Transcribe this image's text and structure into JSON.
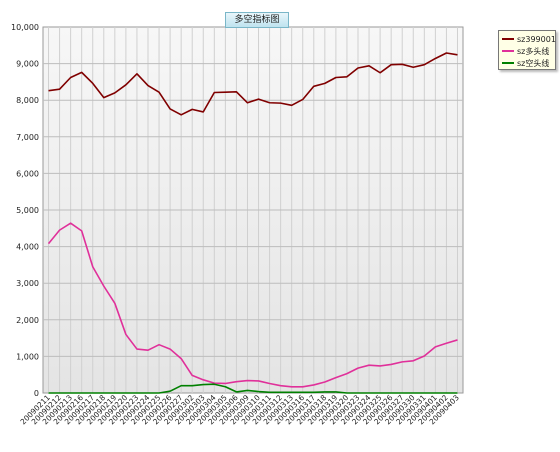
{
  "chart_data": {
    "type": "line",
    "title": "多空指标图",
    "xlabel": "",
    "ylabel": "",
    "ylim": [
      0,
      10000
    ],
    "yticks": [
      "0",
      "1,000",
      "2,000",
      "3,000",
      "4,000",
      "5,000",
      "6,000",
      "7,000",
      "8,000",
      "9,000",
      "10,000"
    ],
    "grid": true,
    "legend_position": "right",
    "categories": [
      "20090211",
      "20090212",
      "20090213",
      "20090216",
      "20090217",
      "20090218",
      "20090219",
      "20090220",
      "20090223",
      "20090224",
      "20090225",
      "20090226",
      "20090227",
      "20090302",
      "20090303",
      "20090304",
      "20090305",
      "20090306",
      "20090309",
      "20090310",
      "20090311",
      "20090312",
      "20090313",
      "20090316",
      "20090317",
      "20090318",
      "20090319",
      "20090320",
      "20090323",
      "20090324",
      "20090325",
      "20090326",
      "20090327",
      "20090330",
      "20090331",
      "20090401",
      "20090402",
      "20090403"
    ],
    "series": [
      {
        "name": "sz399001",
        "color": "#800000",
        "values": [
          8260,
          8300,
          8620,
          8760,
          8460,
          8070,
          8200,
          8420,
          8720,
          8400,
          8220,
          7760,
          7600,
          7750,
          7680,
          8210,
          8220,
          8230,
          7930,
          8030,
          7930,
          7920,
          7860,
          8020,
          8380,
          8460,
          8620,
          8640,
          8880,
          8940,
          8750,
          8970,
          8980,
          8900,
          8970,
          9140,
          9290,
          9240
        ]
      },
      {
        "name": "sz多头线",
        "color": "#e0309a",
        "values": [
          4080,
          4450,
          4640,
          4430,
          3450,
          2920,
          2450,
          1600,
          1200,
          1170,
          1320,
          1200,
          940,
          480,
          360,
          270,
          260,
          310,
          340,
          330,
          260,
          200,
          170,
          170,
          220,
          300,
          420,
          530,
          680,
          760,
          740,
          780,
          850,
          880,
          1010,
          1260,
          1360,
          1450
        ]
      },
      {
        "name": "sz空头线",
        "color": "#008000",
        "values": [
          0,
          0,
          0,
          0,
          0,
          0,
          0,
          0,
          0,
          0,
          0,
          50,
          200,
          200,
          230,
          240,
          170,
          30,
          70,
          40,
          20,
          20,
          20,
          20,
          20,
          30,
          30,
          0,
          0,
          0,
          0,
          0,
          0,
          0,
          0,
          0,
          0,
          0
        ]
      }
    ]
  }
}
